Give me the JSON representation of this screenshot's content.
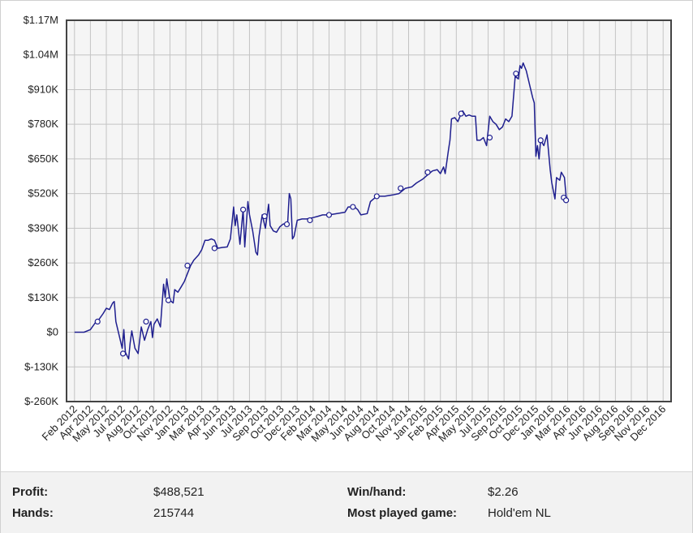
{
  "chart_data": {
    "type": "line",
    "title": "",
    "xlabel": "",
    "ylabel": "",
    "ylim": [
      -260000,
      1170000
    ],
    "y_ticks": [
      "$-260K",
      "$-130K",
      "$0",
      "$130K",
      "$260K",
      "$390K",
      "$520K",
      "$650K",
      "$780K",
      "$910K",
      "$1.04M",
      "$1.17M"
    ],
    "x_ticks": [
      "Feb 2012",
      "Apr 2012",
      "May 2012",
      "Jul 2012",
      "Aug 2012",
      "Oct 2012",
      "Nov 2012",
      "Jan 2013",
      "Mar 2013",
      "Apr 2013",
      "Jun 2013",
      "Jul 2013",
      "Sep 2013",
      "Oct 2013",
      "Dec 2013",
      "Feb 2014",
      "Mar 2014",
      "May 2014",
      "Jun 2014",
      "Aug 2014",
      "Oct 2014",
      "Nov 2014",
      "Jan 2015",
      "Feb 2015",
      "Apr 2015",
      "May 2015",
      "Jul 2015",
      "Sep 2015",
      "Oct 2015",
      "Dec 2015",
      "Jan 2016",
      "Mar 2016",
      "Apr 2016",
      "Jun 2016",
      "Aug 2016",
      "Sep 2016",
      "Nov 2016",
      "Dec 2016"
    ],
    "grid": true,
    "line_color": "#1f1f8f",
    "series": [
      {
        "points": [
          [
            0.0,
            0
          ],
          [
            0.6,
            0
          ],
          [
            1.0,
            10000
          ],
          [
            1.3,
            35000
          ],
          [
            1.5,
            45000
          ],
          [
            1.8,
            70000
          ],
          [
            2.0,
            90000
          ],
          [
            2.2,
            85000
          ],
          [
            2.4,
            110000
          ],
          [
            2.5,
            115000
          ],
          [
            2.6,
            40000
          ],
          [
            2.8,
            -10000
          ],
          [
            3.0,
            -60000
          ],
          [
            3.1,
            10000
          ],
          [
            3.2,
            -75000
          ],
          [
            3.4,
            -100000
          ],
          [
            3.5,
            -40000
          ],
          [
            3.6,
            5000
          ],
          [
            3.8,
            -60000
          ],
          [
            4.0,
            -80000
          ],
          [
            4.2,
            20000
          ],
          [
            4.4,
            -30000
          ],
          [
            4.6,
            10000
          ],
          [
            4.8,
            40000
          ],
          [
            4.9,
            -20000
          ],
          [
            5.0,
            30000
          ],
          [
            5.2,
            50000
          ],
          [
            5.4,
            20000
          ],
          [
            5.5,
            100000
          ],
          [
            5.6,
            180000
          ],
          [
            5.7,
            130000
          ],
          [
            5.8,
            200000
          ],
          [
            5.9,
            160000
          ],
          [
            6.0,
            120000
          ],
          [
            6.2,
            110000
          ],
          [
            6.3,
            160000
          ],
          [
            6.5,
            150000
          ],
          [
            6.7,
            170000
          ],
          [
            6.9,
            190000
          ],
          [
            7.1,
            220000
          ],
          [
            7.3,
            250000
          ],
          [
            7.5,
            270000
          ],
          [
            7.8,
            290000
          ],
          [
            8.0,
            310000
          ],
          [
            8.2,
            345000
          ],
          [
            8.4,
            345000
          ],
          [
            8.6,
            350000
          ],
          [
            8.8,
            345000
          ],
          [
            9.0,
            315000
          ],
          [
            9.3,
            318000
          ],
          [
            9.6,
            320000
          ],
          [
            9.8,
            350000
          ],
          [
            10.0,
            470000
          ],
          [
            10.1,
            400000
          ],
          [
            10.2,
            440000
          ],
          [
            10.4,
            330000
          ],
          [
            10.6,
            460000
          ],
          [
            10.7,
            320000
          ],
          [
            10.9,
            490000
          ],
          [
            11.0,
            440000
          ],
          [
            11.2,
            380000
          ],
          [
            11.4,
            300000
          ],
          [
            11.5,
            290000
          ],
          [
            11.6,
            360000
          ],
          [
            11.8,
            440000
          ],
          [
            12.0,
            390000
          ],
          [
            12.2,
            480000
          ],
          [
            12.3,
            400000
          ],
          [
            12.5,
            380000
          ],
          [
            12.7,
            375000
          ],
          [
            12.9,
            395000
          ],
          [
            13.1,
            405000
          ],
          [
            13.4,
            410000
          ],
          [
            13.5,
            520000
          ],
          [
            13.6,
            500000
          ],
          [
            13.7,
            350000
          ],
          [
            13.8,
            360000
          ],
          [
            14.0,
            420000
          ],
          [
            14.3,
            425000
          ],
          [
            14.6,
            425000
          ],
          [
            15.0,
            430000
          ],
          [
            15.3,
            435000
          ],
          [
            15.6,
            440000
          ],
          [
            16.0,
            440000
          ],
          [
            16.5,
            445000
          ],
          [
            17.0,
            450000
          ],
          [
            17.2,
            470000
          ],
          [
            17.6,
            470000
          ],
          [
            17.8,
            460000
          ],
          [
            18.0,
            440000
          ],
          [
            18.4,
            445000
          ],
          [
            18.6,
            490000
          ],
          [
            18.8,
            500000
          ],
          [
            19.0,
            510000
          ],
          [
            19.5,
            510000
          ],
          [
            20.0,
            515000
          ],
          [
            20.4,
            520000
          ],
          [
            20.8,
            540000
          ],
          [
            21.2,
            545000
          ],
          [
            21.5,
            560000
          ],
          [
            21.9,
            575000
          ],
          [
            22.2,
            590000
          ],
          [
            22.5,
            605000
          ],
          [
            22.8,
            610000
          ],
          [
            23.0,
            595000
          ],
          [
            23.2,
            620000
          ],
          [
            23.3,
            595000
          ],
          [
            23.5,
            680000
          ],
          [
            23.6,
            720000
          ],
          [
            23.7,
            800000
          ],
          [
            23.9,
            805000
          ],
          [
            24.1,
            790000
          ],
          [
            24.3,
            820000
          ],
          [
            24.4,
            830000
          ],
          [
            24.6,
            810000
          ],
          [
            24.8,
            815000
          ],
          [
            25.0,
            810000
          ],
          [
            25.2,
            810000
          ],
          [
            25.3,
            720000
          ],
          [
            25.5,
            720000
          ],
          [
            25.7,
            730000
          ],
          [
            25.9,
            700000
          ],
          [
            26.1,
            810000
          ],
          [
            26.3,
            790000
          ],
          [
            26.5,
            780000
          ],
          [
            26.7,
            760000
          ],
          [
            26.9,
            770000
          ],
          [
            27.1,
            800000
          ],
          [
            27.3,
            790000
          ],
          [
            27.5,
            810000
          ],
          [
            27.7,
            960000
          ],
          [
            27.9,
            950000
          ],
          [
            28.0,
            1000000
          ],
          [
            28.1,
            990000
          ],
          [
            28.2,
            1010000
          ],
          [
            28.4,
            980000
          ],
          [
            28.6,
            930000
          ],
          [
            28.8,
            880000
          ],
          [
            28.9,
            860000
          ],
          [
            29.0,
            660000
          ],
          [
            29.1,
            700000
          ],
          [
            29.2,
            650000
          ],
          [
            29.3,
            720000
          ],
          [
            29.5,
            700000
          ],
          [
            29.7,
            740000
          ],
          [
            29.9,
            610000
          ],
          [
            30.0,
            560000
          ],
          [
            30.2,
            500000
          ],
          [
            30.3,
            580000
          ],
          [
            30.5,
            570000
          ],
          [
            30.6,
            600000
          ],
          [
            30.8,
            580000
          ],
          [
            30.9,
            510000
          ],
          [
            31.0,
            495000
          ]
        ],
        "markers": [
          [
            1.45,
            40000
          ],
          [
            3.05,
            -80000
          ],
          [
            4.5,
            40000
          ],
          [
            5.9,
            120000
          ],
          [
            7.1,
            250000
          ],
          [
            8.8,
            315000
          ],
          [
            10.6,
            460000
          ],
          [
            11.95,
            435000
          ],
          [
            13.35,
            405000
          ],
          [
            14.8,
            420000
          ],
          [
            16.0,
            440000
          ],
          [
            17.5,
            470000
          ],
          [
            19.0,
            510000
          ],
          [
            20.5,
            540000
          ],
          [
            22.2,
            600000
          ],
          [
            24.3,
            820000
          ],
          [
            26.1,
            730000
          ],
          [
            27.75,
            970000
          ],
          [
            29.3,
            720000
          ],
          [
            30.75,
            505000
          ],
          [
            30.9,
            495000
          ]
        ]
      }
    ]
  },
  "stats": {
    "profit_label": "Profit:",
    "profit_value": "$488,521",
    "hands_label": "Hands:",
    "hands_value": "215744",
    "winhand_label": "Win/hand:",
    "winhand_value": "$2.26",
    "game_label": "Most played game:",
    "game_value": "Hold'em NL"
  }
}
